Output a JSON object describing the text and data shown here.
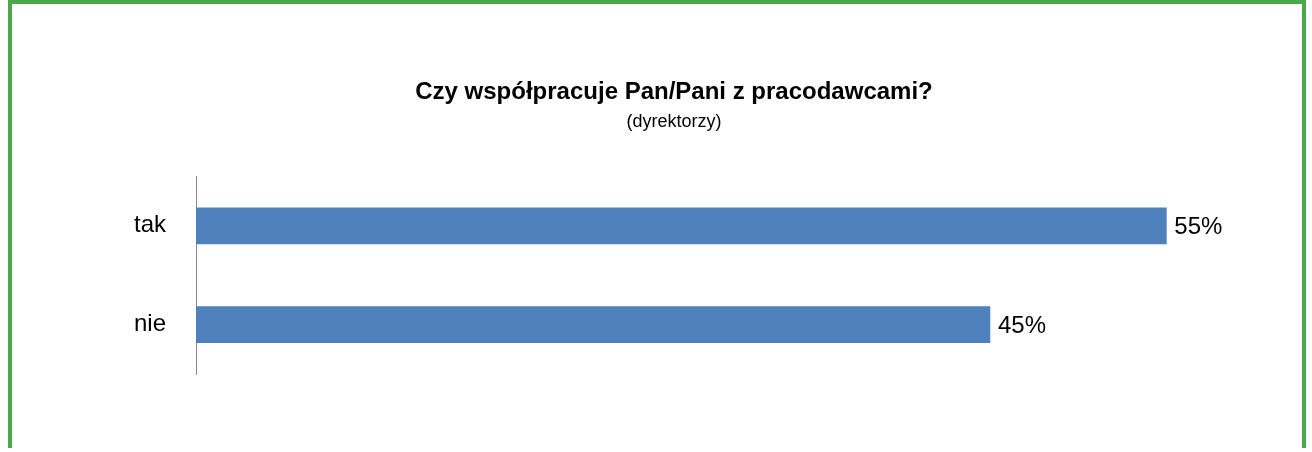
{
  "chart_data": {
    "type": "bar",
    "orientation": "horizontal",
    "title": "Czy współpracuje Pan/Pani z pracodawcami?",
    "subtitle": "(dyrektorzy)",
    "categories": [
      "tak",
      "nie"
    ],
    "values": [
      55,
      45
    ],
    "value_labels": [
      "55%",
      "45%"
    ],
    "color": "#4f81bd"
  }
}
